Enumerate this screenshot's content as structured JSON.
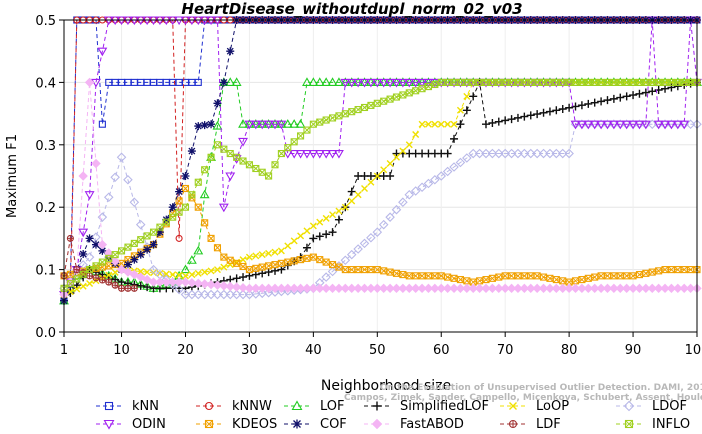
{
  "chart_data": {
    "type": "line",
    "title": "HeartDisease_withoutdupl_norm_02_v03",
    "xlabel": "Neighborhood size",
    "ylabel": "Maximum F1",
    "xlim": [
      1,
      100
    ],
    "ylim": [
      0,
      0.5
    ],
    "xticks": [
      1,
      10,
      20,
      30,
      40,
      50,
      60,
      70,
      80,
      90,
      100
    ],
    "yticks": [
      0.0,
      0.1,
      0.2,
      0.3,
      0.4,
      0.5
    ],
    "ytick_labels": [
      "0.0",
      "0.1",
      "0.2",
      "0.3",
      "0.4",
      "0.5"
    ],
    "legend_position": "bottom",
    "watermark": [
      "Campos, Zimek, Sander, Campello, Micenkova, Schubert, Assent, Houle",
      "On the Evaluation of Unsupervised Outlier Detection. DAMI, 2015."
    ],
    "series": [
      {
        "name": "kNN",
        "color": "#1f2fd0",
        "marker": "square",
        "points": [
          [
            1,
            0.05
          ],
          [
            2,
            0.09
          ],
          [
            3,
            0.5
          ],
          [
            5,
            0.5
          ],
          [
            6,
            0.5
          ],
          [
            7,
            0.333
          ],
          [
            8,
            0.4
          ],
          [
            10,
            0.4
          ],
          [
            15,
            0.4
          ],
          [
            20,
            0.4
          ],
          [
            22,
            0.4
          ],
          [
            23,
            0.5
          ],
          [
            100,
            0.5
          ]
        ]
      },
      {
        "name": "kNNW",
        "color": "#d22020",
        "marker": "circle",
        "points": [
          [
            1,
            0.06
          ],
          [
            2,
            0.07
          ],
          [
            3,
            0.5
          ],
          [
            18,
            0.5
          ],
          [
            19,
            0.15
          ],
          [
            20,
            0.5
          ],
          [
            100,
            0.5
          ]
        ]
      },
      {
        "name": "LOF",
        "color": "#22cc22",
        "marker": "triangle-up",
        "points": [
          [
            1,
            0.05
          ],
          [
            3,
            0.09
          ],
          [
            5,
            0.1
          ],
          [
            8,
            0.09
          ],
          [
            10,
            0.08
          ],
          [
            12,
            0.08
          ],
          [
            15,
            0.07
          ],
          [
            18,
            0.08
          ],
          [
            20,
            0.1
          ],
          [
            22,
            0.13
          ],
          [
            23,
            0.22
          ],
          [
            24,
            0.28
          ],
          [
            25,
            0.33
          ],
          [
            26,
            0.4
          ],
          [
            28,
            0.4
          ],
          [
            29,
            0.333
          ],
          [
            38,
            0.333
          ],
          [
            39,
            0.4
          ],
          [
            100,
            0.4
          ]
        ]
      },
      {
        "name": "SimplifiedLOF",
        "color": "#111111",
        "marker": "plus",
        "points": [
          [
            1,
            0.05
          ],
          [
            5,
            0.1
          ],
          [
            10,
            0.08
          ],
          [
            15,
            0.07
          ],
          [
            20,
            0.07
          ],
          [
            25,
            0.08
          ],
          [
            30,
            0.09
          ],
          [
            35,
            0.1
          ],
          [
            38,
            0.12
          ],
          [
            40,
            0.15
          ],
          [
            43,
            0.16
          ],
          [
            45,
            0.2
          ],
          [
            47,
            0.25
          ],
          [
            52,
            0.25
          ],
          [
            53,
            0.286
          ],
          [
            61,
            0.286
          ],
          [
            63,
            0.333
          ],
          [
            66,
            0.4
          ],
          [
            67,
            0.333
          ],
          [
            100,
            0.4
          ]
        ]
      },
      {
        "name": "LoOP",
        "color": "#f0e000",
        "marker": "cross",
        "points": [
          [
            1,
            0.06
          ],
          [
            10,
            0.1
          ],
          [
            20,
            0.09
          ],
          [
            25,
            0.1
          ],
          [
            30,
            0.12
          ],
          [
            35,
            0.13
          ],
          [
            40,
            0.17
          ],
          [
            45,
            0.2
          ],
          [
            50,
            0.25
          ],
          [
            55,
            0.3
          ],
          [
            57,
            0.333
          ],
          [
            62,
            0.333
          ],
          [
            65,
            0.4
          ],
          [
            100,
            0.4
          ]
        ]
      },
      {
        "name": "LDOF",
        "color": "#b8b8e8",
        "marker": "diamond",
        "points": [
          [
            1,
            0.07
          ],
          [
            5,
            0.12
          ],
          [
            10,
            0.28
          ],
          [
            15,
            0.1
          ],
          [
            20,
            0.06
          ],
          [
            30,
            0.06
          ],
          [
            40,
            0.07
          ],
          [
            50,
            0.16
          ],
          [
            55,
            0.22
          ],
          [
            60,
            0.25
          ],
          [
            65,
            0.286
          ],
          [
            80,
            0.286
          ],
          [
            81,
            0.333
          ],
          [
            100,
            0.333
          ]
        ]
      },
      {
        "name": "ODIN",
        "color": "#a020f0",
        "marker": "triangle-down",
        "points": [
          [
            1,
            0.06
          ],
          [
            3,
            0.1
          ],
          [
            5,
            0.22
          ],
          [
            6,
            0.4
          ],
          [
            8,
            0.5
          ],
          [
            25,
            0.5
          ],
          [
            26,
            0.2
          ],
          [
            27,
            0.25
          ],
          [
            30,
            0.333
          ],
          [
            35,
            0.333
          ],
          [
            36,
            0.286
          ],
          [
            44,
            0.286
          ],
          [
            45,
            0.4
          ],
          [
            80,
            0.4
          ],
          [
            81,
            0.333
          ],
          [
            92,
            0.333
          ],
          [
            93,
            0.5
          ],
          [
            94,
            0.333
          ],
          [
            98,
            0.333
          ],
          [
            99,
            0.5
          ],
          [
            100,
            0.4
          ]
        ]
      },
      {
        "name": "KDEOS",
        "color": "#f0a000",
        "marker": "square-x",
        "points": [
          [
            1,
            0.09
          ],
          [
            5,
            0.1
          ],
          [
            10,
            0.11
          ],
          [
            15,
            0.14
          ],
          [
            18,
            0.19
          ],
          [
            20,
            0.23
          ],
          [
            22,
            0.2
          ],
          [
            24,
            0.15
          ],
          [
            26,
            0.12
          ],
          [
            28,
            0.11
          ],
          [
            30,
            0.1
          ],
          [
            35,
            0.11
          ],
          [
            40,
            0.12
          ],
          [
            45,
            0.1
          ],
          [
            50,
            0.1
          ],
          [
            55,
            0.09
          ],
          [
            60,
            0.09
          ],
          [
            65,
            0.08
          ],
          [
            70,
            0.09
          ],
          [
            75,
            0.09
          ],
          [
            80,
            0.08
          ],
          [
            85,
            0.09
          ],
          [
            90,
            0.09
          ],
          [
            95,
            0.1
          ],
          [
            100,
            0.1
          ]
        ]
      },
      {
        "name": "COF",
        "color": "#10106a",
        "marker": "asterisk",
        "points": [
          [
            1,
            0.05
          ],
          [
            5,
            0.15
          ],
          [
            8,
            0.12
          ],
          [
            10,
            0.1
          ],
          [
            15,
            0.14
          ],
          [
            18,
            0.2
          ],
          [
            20,
            0.25
          ],
          [
            22,
            0.33
          ],
          [
            24,
            0.333
          ],
          [
            26,
            0.4
          ],
          [
            28,
            0.5
          ],
          [
            100,
            0.5
          ]
        ]
      },
      {
        "name": "FastABOD",
        "color": "#f4b4f4",
        "marker": "diamond-filled",
        "points": [
          [
            1,
            0.06
          ],
          [
            3,
            0.1
          ],
          [
            5,
            0.4
          ],
          [
            7,
            0.14
          ],
          [
            10,
            0.1
          ],
          [
            15,
            0.08
          ],
          [
            20,
            0.08
          ],
          [
            30,
            0.07
          ],
          [
            40,
            0.07
          ],
          [
            50,
            0.07
          ],
          [
            100,
            0.07
          ]
        ]
      },
      {
        "name": "LDF",
        "color": "#a03030",
        "marker": "circle-plus",
        "points": [
          [
            1,
            0.09
          ],
          [
            2,
            0.15
          ],
          [
            3,
            0.1
          ],
          [
            5,
            0.09
          ],
          [
            8,
            0.08
          ],
          [
            10,
            0.07
          ],
          [
            12,
            0.07
          ]
        ]
      },
      {
        "name": "INFLO",
        "color": "#a0d020",
        "marker": "square-x",
        "points": [
          [
            1,
            0.07
          ],
          [
            5,
            0.1
          ],
          [
            10,
            0.13
          ],
          [
            15,
            0.16
          ],
          [
            20,
            0.2
          ],
          [
            25,
            0.3
          ],
          [
            27,
            0.286
          ],
          [
            33,
            0.25
          ],
          [
            35,
            0.286
          ],
          [
            40,
            0.333
          ],
          [
            60,
            0.4
          ],
          [
            100,
            0.4
          ]
        ]
      }
    ]
  }
}
